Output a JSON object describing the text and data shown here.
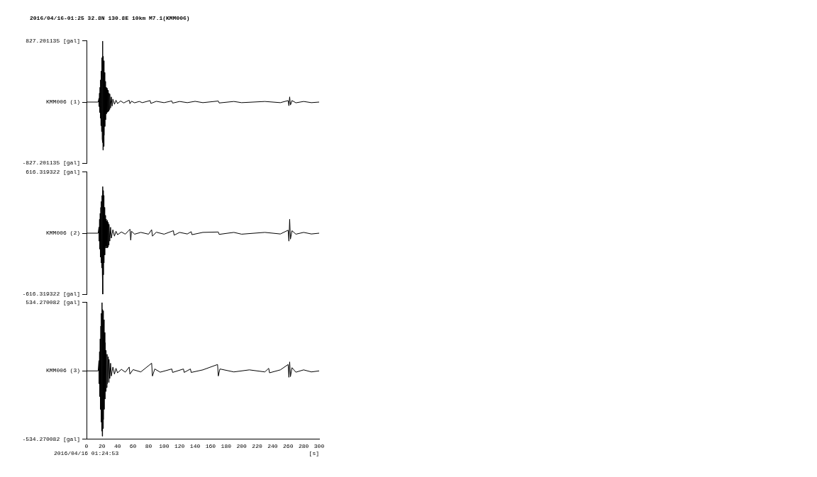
{
  "chart_data": [
    {
      "type": "line",
      "title": "2016/04/16-01:25 32.8N 130.8E 10km M7.1(KMM006)",
      "tick_labels": "y",
      "marker": "none",
      "xlim": [
        0,
        300
      ],
      "x": [
        0,
        10,
        15,
        16,
        16.3,
        16.7,
        17,
        17.4,
        17.8,
        18.2,
        18.6,
        19,
        19.4,
        19.8,
        20.2,
        20.6,
        21,
        21.2,
        21.6,
        22,
        22.4,
        22.8,
        23.2,
        23.6,
        24,
        24.5,
        25,
        25.5,
        26,
        26.5,
        27,
        27.5,
        28,
        28.5,
        29,
        29.5,
        30,
        31,
        32,
        33,
        34,
        36,
        38,
        40,
        44,
        48,
        52,
        55,
        56,
        58,
        62,
        68,
        72,
        82,
        83,
        90,
        100,
        110,
        111,
        120,
        130,
        140,
        150,
        170,
        171,
        190,
        200,
        230,
        250,
        260,
        261,
        262,
        263,
        265,
        270,
        280,
        290,
        300
      ],
      "ylim": [
        -827.201135,
        827.201135
      ],
      "yticks": [
        {
          "value": 827.201135,
          "label": "827.201135 [gal]"
        },
        {
          "value": 0,
          "label": "KMM006 (1)"
        },
        {
          "value": -827.201135,
          "label": "-827.201135 [gal]"
        }
      ],
      "series": [
        {
          "color": "#000000",
          "values": [
            0,
            0,
            0,
            50,
            -60,
            120,
            -140,
            200,
            -220,
            300,
            -320,
            420,
            -400,
            600,
            -500,
            -550,
            827,
            -650,
            620,
            -600,
            560,
            -450,
            400,
            -330,
            280,
            -240,
            200,
            -160,
            190,
            -140,
            170,
            -130,
            160,
            -120,
            120,
            -100,
            110,
            -80,
            70,
            -55,
            40,
            -30,
            25,
            -20,
            15,
            -12,
            10,
            25,
            -22,
            12,
            -10,
            8,
            -8,
            20,
            -18,
            10,
            -8,
            15,
            -14,
            8,
            -8,
            10,
            -8,
            14,
            -12,
            8,
            -8,
            8,
            -8,
            20,
            -50,
            70,
            -40,
            20,
            -10,
            8,
            -8,
            0
          ]
        }
      ]
    },
    {
      "type": "line",
      "tick_labels": "y",
      "marker": "none",
      "xlim": [
        0,
        300
      ],
      "x": [
        0,
        15,
        16,
        16.4,
        16.8,
        17.2,
        17.6,
        18,
        18.4,
        18.8,
        19.2,
        19.6,
        20,
        20.4,
        20.8,
        21,
        21.3,
        21.7,
        22.1,
        22.5,
        23,
        23.5,
        24,
        24.5,
        25,
        25.5,
        26,
        26.5,
        27,
        27.5,
        28,
        28.5,
        29,
        30,
        31,
        32,
        34,
        36,
        38,
        40,
        45,
        50,
        56,
        57,
        58,
        62,
        70,
        80,
        84,
        85,
        90,
        100,
        112,
        113,
        120,
        130,
        135,
        136,
        150,
        170,
        171,
        190,
        200,
        230,
        250,
        260,
        261,
        262,
        263,
        265,
        270,
        280,
        290,
        300
      ],
      "ylim": [
        -616.319322,
        616.319322
      ],
      "yticks": [
        {
          "value": 616.319322,
          "label": "616.319322 [gal]"
        },
        {
          "value": 0,
          "label": "KMM006 (2)"
        },
        {
          "value": -616.319322,
          "label": "-616.319322 [gal]"
        }
      ],
      "series": [
        {
          "color": "#000000",
          "values": [
            0,
            0,
            60,
            -80,
            140,
            -160,
            200,
            -240,
            260,
            -300,
            320,
            -350,
            380,
            -400,
            470,
            -616,
            430,
            -420,
            380,
            -300,
            260,
            -220,
            180,
            -150,
            140,
            -130,
            120,
            -150,
            130,
            -140,
            110,
            -120,
            90,
            -80,
            60,
            -50,
            35,
            -30,
            20,
            -15,
            12,
            -10,
            40,
            -70,
            20,
            -10,
            8,
            -10,
            35,
            -30,
            10,
            -10,
            25,
            -20,
            8,
            -8,
            15,
            -15,
            8,
            12,
            -12,
            8,
            -10,
            8,
            -8,
            30,
            -80,
            140,
            -60,
            25,
            -10,
            8,
            -8,
            0
          ]
        }
      ]
    },
    {
      "type": "line",
      "marker": "none",
      "xlabel": "[s]",
      "annotations": [
        "2016/04/16 01:24:53"
      ],
      "xlim": [
        0,
        300
      ],
      "xticks": [
        0,
        20,
        40,
        60,
        80,
        100,
        120,
        140,
        160,
        180,
        200,
        220,
        240,
        260,
        280,
        300
      ],
      "x": [
        0,
        15,
        16,
        16.4,
        16.8,
        17.2,
        17.6,
        18,
        18.4,
        18.8,
        19.2,
        19.6,
        20,
        20.3,
        20.7,
        21.1,
        21.5,
        21.9,
        22.3,
        22.7,
        23.2,
        23.7,
        24.2,
        24.7,
        25.2,
        25.7,
        26.5,
        27,
        28,
        28.5,
        29,
        30,
        31,
        32,
        34,
        36,
        38,
        40,
        45,
        50,
        55,
        56,
        60,
        70,
        84,
        85,
        88,
        95,
        110,
        111,
        125,
        126,
        134,
        135,
        150,
        169,
        170,
        172,
        190,
        210,
        230,
        235,
        236,
        250,
        260,
        261,
        262,
        263,
        265,
        270,
        280,
        290,
        300
      ],
      "ylim": [
        -534.270082,
        534.270082
      ],
      "yticks": [
        {
          "value": 534.270082,
          "label": "534.270082 [gal]"
        },
        {
          "value": 0,
          "label": "KMM006 (3)"
        },
        {
          "value": -534.270082,
          "label": "-534.270082 [gal]"
        }
      ],
      "series": [
        {
          "color": "#000000",
          "values": [
            0,
            0,
            80,
            -100,
            150,
            -200,
            250,
            -300,
            350,
            -400,
            450,
            -470,
            534,
            -510,
            480,
            -450,
            470,
            -380,
            400,
            -300,
            300,
            -220,
            220,
            -160,
            160,
            -130,
            130,
            -100,
            110,
            -90,
            90,
            -60,
            60,
            -40,
            30,
            -25,
            20,
            -15,
            12,
            -10,
            30,
            -25,
            10,
            -8,
            60,
            -40,
            15,
            -10,
            15,
            -12,
            15,
            -12,
            15,
            -12,
            8,
            50,
            -40,
            15,
            -8,
            8,
            -8,
            20,
            -15,
            8,
            50,
            -50,
            70,
            -45,
            25,
            -10,
            8,
            -8,
            0
          ]
        }
      ]
    }
  ]
}
